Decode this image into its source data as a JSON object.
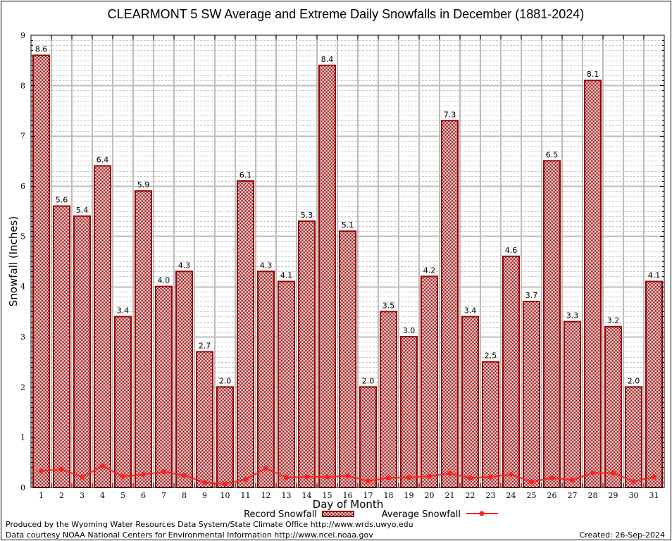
{
  "chart_data": {
    "type": "bar",
    "title": "CLEARMONT 5 SW Average and Extreme Daily Snowfalls in December (1881-2024)",
    "xlabel": "Day of Month",
    "ylabel": "Snowfall (Inches)",
    "ylim": [
      0,
      9
    ],
    "yticks": [
      "0",
      "1",
      "2",
      "3",
      "4",
      "5",
      "6",
      "7",
      "8",
      "9"
    ],
    "grid": true,
    "categories": [
      "1",
      "2",
      "3",
      "4",
      "5",
      "6",
      "7",
      "8",
      "9",
      "10",
      "11",
      "12",
      "13",
      "14",
      "15",
      "16",
      "17",
      "18",
      "19",
      "20",
      "21",
      "22",
      "23",
      "24",
      "25",
      "26",
      "27",
      "28",
      "29",
      "30",
      "31"
    ],
    "series": [
      {
        "name": "Record Snowfall",
        "type": "bar",
        "color": "#990000",
        "values": [
          8.6,
          5.6,
          5.4,
          6.4,
          3.4,
          5.9,
          4.0,
          4.3,
          2.7,
          2.0,
          6.1,
          4.3,
          4.1,
          5.3,
          8.4,
          5.1,
          2.0,
          3.5,
          3.0,
          4.2,
          7.3,
          3.4,
          2.5,
          4.6,
          3.7,
          6.5,
          3.3,
          8.1,
          3.2,
          2.0,
          4.1
        ],
        "labels": [
          "8.6",
          "5.6",
          "5.4",
          "6.4",
          "3.4",
          "5.9",
          "4.0",
          "4.3",
          "2.7",
          "2.0",
          "6.1",
          "4.3",
          "4.1",
          "5.3",
          "8.4",
          "5.1",
          "2.0",
          "3.5",
          "3.0",
          "4.2",
          "7.3",
          "3.4",
          "2.5",
          "4.6",
          "3.7",
          "6.5",
          "3.3",
          "8.1",
          "3.2",
          "2.0",
          "4.1"
        ]
      },
      {
        "name": "Average Snowfall",
        "type": "line",
        "color": "#ff2020",
        "values": [
          0.33,
          0.36,
          0.21,
          0.43,
          0.22,
          0.26,
          0.31,
          0.24,
          0.1,
          0.07,
          0.16,
          0.38,
          0.2,
          0.21,
          0.21,
          0.23,
          0.13,
          0.19,
          0.2,
          0.22,
          0.28,
          0.19,
          0.21,
          0.26,
          0.11,
          0.19,
          0.15,
          0.29,
          0.29,
          0.12,
          0.21
        ]
      }
    ],
    "legend": "bottom"
  },
  "footer": {
    "produced_by": "Produced by the Wyoming Water Resources Data System/State Climate Office http://www.wrds.uwyo.edu",
    "data_courtesy": "Data courtesy NOAA National Centers for Environmental Information http://www.ncei.noaa.gov",
    "created": "Created: 26-Sep-2024"
  }
}
